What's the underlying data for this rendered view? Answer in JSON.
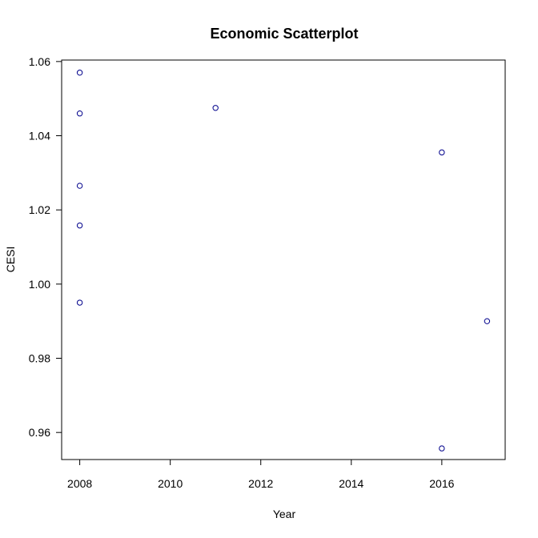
{
  "chart_data": {
    "type": "scatter",
    "title": "Economic Scatterplot",
    "xlabel": "Year",
    "ylabel": "CESI",
    "xlim": [
      2007.6,
      2017.4
    ],
    "ylim": [
      0.9527,
      1.0604
    ],
    "xticks": [
      2008,
      2010,
      2012,
      2014,
      2016
    ],
    "xtick_labels": [
      "2008",
      "2010",
      "2012",
      "2014",
      "2016"
    ],
    "yticks": [
      0.96,
      0.98,
      1.0,
      1.02,
      1.04,
      1.06
    ],
    "ytick_labels": [
      "0.96",
      "0.98",
      "1.00",
      "1.02",
      "1.04",
      "1.06"
    ],
    "grid": false,
    "marker": "open-circle",
    "marker_color": "#00008b",
    "points": [
      {
        "x": 2008,
        "y": 1.057
      },
      {
        "x": 2008,
        "y": 1.046
      },
      {
        "x": 2008,
        "y": 1.0265
      },
      {
        "x": 2008,
        "y": 1.0158
      },
      {
        "x": 2008,
        "y": 0.995
      },
      {
        "x": 2011,
        "y": 1.0475
      },
      {
        "x": 2016,
        "y": 1.0355
      },
      {
        "x": 2016,
        "y": 0.9557
      },
      {
        "x": 2017,
        "y": 0.99
      }
    ]
  }
}
